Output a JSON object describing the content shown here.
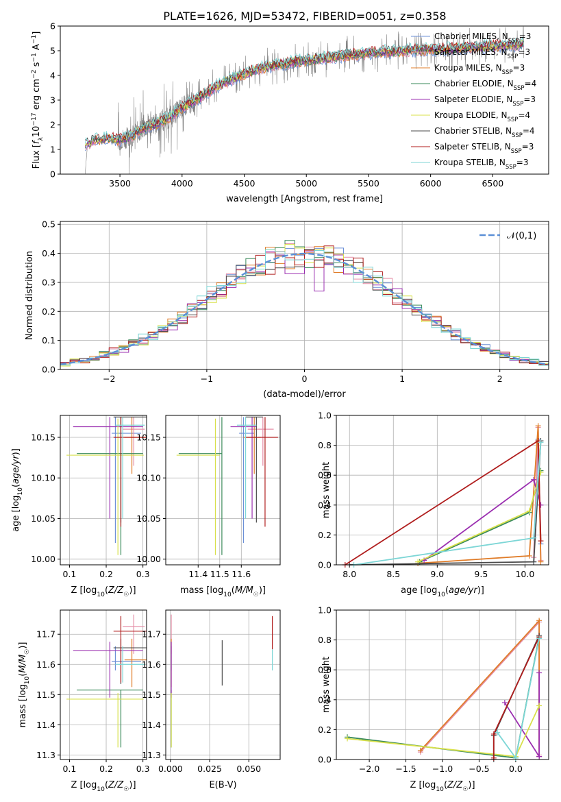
{
  "figure": {
    "title": "PLATE=1626, MJD=53472, FIBERID=0051, z=0.358"
  },
  "colors": {
    "Chabrier MILES": "#6b8fd6",
    "Salpeter MILES": "#e58fa8",
    "Kroupa MILES": "#e07d2a",
    "Chabrier ELODIE": "#3a8a5a",
    "Salpeter ELODIE": "#9b2fb0",
    "Kroupa ELODIE": "#d8e04a",
    "Chabrier STELIB": "#4a4a4a",
    "Salpeter STELIB": "#b01e1e",
    "Kroupa STELIB": "#7dd6d6",
    "data": "#808080",
    "normal": "#5b8fd6"
  },
  "chart_data": [
    {
      "id": "spectrum",
      "type": "line",
      "xlabel": "wavelength [Angstrom, rest frame]",
      "ylabel": "Flux [f_λ 10^-17 erg cm^-2 s^-1 A^-1]",
      "xlim": [
        3020,
        6950
      ],
      "ylim": [
        0,
        6
      ],
      "xticks": [
        3500,
        4000,
        4500,
        5000,
        5500,
        6000,
        6500
      ],
      "yticks": [
        0,
        1,
        2,
        3,
        4,
        5,
        6
      ],
      "legend_position": "right",
      "legend": [
        {
          "label": "Chabrier MILES, N",
          "sub": "SSP",
          "tail": "=3",
          "model": "Chabrier MILES"
        },
        {
          "label": "Salpeter MILES, N",
          "sub": "SSP",
          "tail": "=3",
          "model": "Salpeter MILES"
        },
        {
          "label": "Kroupa MILES, N",
          "sub": "SSP",
          "tail": "=3",
          "model": "Kroupa MILES"
        },
        {
          "label": "Chabrier ELODIE, N",
          "sub": "SSP",
          "tail": "=4",
          "model": "Chabrier ELODIE"
        },
        {
          "label": "Salpeter ELODIE, N",
          "sub": "SSP",
          "tail": "=3",
          "model": "Salpeter ELODIE"
        },
        {
          "label": "Kroupa ELODIE, N",
          "sub": "SSP",
          "tail": "=4",
          "model": "Kroupa ELODIE"
        },
        {
          "label": "Chabrier STELIB, N",
          "sub": "SSP",
          "tail": "=4",
          "model": "Chabrier STELIB"
        },
        {
          "label": "Salpeter STELIB, N",
          "sub": "SSP",
          "tail": "=3",
          "model": "Salpeter STELIB"
        },
        {
          "label": "Kroupa STELIB, N",
          "sub": "SSP",
          "tail": "=3",
          "model": "Kroupa STELIB"
        }
      ],
      "continuum": {
        "x": [
          3220,
          3300,
          3400,
          3500,
          3600,
          3700,
          3800,
          3900,
          4000,
          4100,
          4200,
          4300,
          4400,
          4500,
          4600,
          4700,
          4800,
          4900,
          5000,
          5200,
          5400,
          5600,
          5800,
          6000,
          6200,
          6400,
          6600,
          6750
        ],
        "y": [
          1.2,
          1.4,
          1.45,
          1.4,
          1.55,
          1.9,
          2.05,
          2.3,
          2.7,
          2.95,
          3.3,
          3.6,
          3.85,
          4.05,
          4.25,
          4.35,
          4.45,
          4.55,
          4.6,
          4.75,
          4.85,
          4.95,
          5.0,
          5.05,
          5.1,
          5.15,
          5.2,
          5.25
        ]
      },
      "models": {
        "x_min": 3220,
        "x_max": 6750
      }
    },
    {
      "id": "residuals",
      "type": "histogram",
      "xlabel": "(data-model)/error",
      "ylabel": "Normed distribution",
      "xlim": [
        -2.5,
        2.5
      ],
      "ylim": [
        0,
        0.51
      ],
      "xticks": [
        -2,
        -1,
        0,
        1,
        2
      ],
      "yticks": [
        0.0,
        0.1,
        0.2,
        0.3,
        0.4,
        0.5
      ],
      "grid": true,
      "legend_position": "top-right",
      "legend": "𝒩(0,1)",
      "bin_width": 0.1
    },
    {
      "id": "age-vs-Z",
      "type": "errorbar",
      "xlabel": "Z [log10(Z/Z☉)]",
      "ylabel": "age [log10(age/yr)]",
      "xlim": [
        0.075,
        0.31
      ],
      "ylim": [
        9.993,
        10.177
      ],
      "xticks": [
        0.1,
        0.2,
        0.3
      ],
      "yticks": [
        10.0,
        10.05,
        10.1,
        10.15
      ],
      "grid": true,
      "points": [
        {
          "model": "Chabrier MILES",
          "x": 0.225,
          "xerr": [
            0.01,
            0.07
          ],
          "y": 10.155,
          "yerr": [
            0.135,
            0.02
          ]
        },
        {
          "model": "Salpeter MILES",
          "x": 0.275,
          "xerr": [
            0.03,
            0.03
          ],
          "y": 10.16,
          "yerr": [
            0.045,
            0.015
          ]
        },
        {
          "model": "Kroupa MILES",
          "x": 0.27,
          "xerr": [
            0.02,
            0.04
          ],
          "y": 10.15,
          "yerr": [
            0.045,
            0.025
          ]
        },
        {
          "model": "Chabrier ELODIE",
          "x": 0.24,
          "xerr": [
            0.12,
            0.06
          ],
          "y": 10.13,
          "yerr": [
            0.125,
            0.045
          ]
        },
        {
          "model": "Salpeter ELODIE",
          "x": 0.21,
          "xerr": [
            0.1,
            0.09
          ],
          "y": 10.163,
          "yerr": [
            0.113,
            0.012
          ]
        },
        {
          "model": "Kroupa ELODIE",
          "x": 0.232,
          "xerr": [
            0.14,
            0.07
          ],
          "y": 10.128,
          "yerr": [
            0.123,
            0.045
          ]
        },
        {
          "model": "Chabrier STELIB",
          "x": 0.24,
          "xerr": [
            0.02,
            0.07
          ],
          "y": 10.175,
          "yerr": [
            0.13,
            0.0
          ]
        },
        {
          "model": "Salpeter STELIB",
          "x": 0.24,
          "xerr": [
            0.02,
            0.07
          ],
          "y": 10.15,
          "yerr": [
            0.11,
            0.025
          ]
        },
        {
          "model": "Kroupa STELIB",
          "x": 0.245,
          "xerr": [
            0.02,
            0.06
          ],
          "y": 10.165,
          "yerr": [
            0.115,
            0.01
          ]
        }
      ]
    },
    {
      "id": "age-vs-mass",
      "type": "errorbar",
      "xlabel": "mass [log10(M/M☉)]",
      "ylabel": "",
      "xlim": [
        11.25,
        11.78
      ],
      "ylim": [
        9.993,
        10.177
      ],
      "xticks": [
        11.4,
        11.5,
        11.6
      ],
      "yticks": [
        10.0,
        10.05,
        10.1,
        10.15
      ],
      "grid": true,
      "points": [
        {
          "model": "Chabrier MILES",
          "x": 11.61,
          "xerr": [
            0.02,
            0.05
          ],
          "y": 10.155,
          "yerr": [
            0.135,
            0.02
          ]
        },
        {
          "model": "Salpeter MILES",
          "x": 11.7,
          "xerr": [
            0.07,
            0.05
          ],
          "y": 10.16,
          "yerr": [
            0.045,
            0.015
          ]
        },
        {
          "model": "Kroupa MILES",
          "x": 11.66,
          "xerr": [
            0.05,
            0.03
          ],
          "y": 10.15,
          "yerr": [
            0.045,
            0.025
          ]
        },
        {
          "model": "Chabrier ELODIE",
          "x": 11.51,
          "xerr": [
            0.2,
            0.0
          ],
          "y": 10.13,
          "yerr": [
            0.125,
            0.045
          ]
        },
        {
          "model": "Salpeter ELODIE",
          "x": 11.65,
          "xerr": [
            0.1,
            0.02
          ],
          "y": 10.163,
          "yerr": [
            0.113,
            0.012
          ]
        },
        {
          "model": "Kroupa ELODIE",
          "x": 11.48,
          "xerr": [
            0.18,
            0.02
          ],
          "y": 10.128,
          "yerr": [
            0.123,
            0.045
          ]
        },
        {
          "model": "Chabrier STELIB",
          "x": 11.67,
          "xerr": [
            0.05,
            0.03
          ],
          "y": 10.175,
          "yerr": [
            0.13,
            0.0
          ]
        },
        {
          "model": "Salpeter STELIB",
          "x": 11.71,
          "xerr": [
            0.09,
            0.06
          ],
          "y": 10.15,
          "yerr": [
            0.11,
            0.025
          ]
        },
        {
          "model": "Kroupa STELIB",
          "x": 11.62,
          "xerr": [
            0.04,
            0.05
          ],
          "y": 10.165,
          "yerr": [
            0.115,
            0.01
          ]
        }
      ]
    },
    {
      "id": "weight-vs-age",
      "type": "line",
      "xlabel": "age [log10(age/yr)]",
      "ylabel": "mass weight",
      "xlim": [
        7.85,
        10.27
      ],
      "ylim": [
        0,
        1.0
      ],
      "xticks": [
        8.0,
        8.5,
        9.0,
        9.5,
        10.0
      ],
      "yticks": [
        0.0,
        0.2,
        0.4,
        0.6,
        0.8,
        1.0
      ],
      "grid": true,
      "series": [
        {
          "model": "Chabrier MILES",
          "x": [
            10.1,
            10.15,
            10.18
          ],
          "y": [
            0.02,
            0.84,
            0.14
          ]
        },
        {
          "model": "Salpeter MILES",
          "x": [
            10.1,
            10.15,
            10.18
          ],
          "y": [
            0.05,
            0.92,
            0.03
          ]
        },
        {
          "model": "Kroupa MILES",
          "x": [
            8.78,
            10.05,
            10.15,
            10.18
          ],
          "y": [
            0.01,
            0.06,
            0.93,
            0.02
          ]
        },
        {
          "model": "Chabrier ELODIE",
          "x": [
            8.8,
            10.05,
            10.18
          ],
          "y": [
            0.02,
            0.35,
            0.63
          ]
        },
        {
          "model": "Salpeter ELODIE",
          "x": [
            8.85,
            10.1,
            10.18
          ],
          "y": [
            0.03,
            0.57,
            0.4
          ]
        },
        {
          "model": "Kroupa ELODIE",
          "x": [
            8.78,
            10.05,
            10.18
          ],
          "y": [
            0.02,
            0.36,
            0.62
          ]
        },
        {
          "model": "Chabrier STELIB",
          "x": [
            8.0,
            10.1,
            10.18
          ],
          "y": [
            0.0,
            0.02,
            0.83
          ]
        },
        {
          "model": "Salpeter STELIB",
          "x": [
            7.95,
            10.15,
            10.18
          ],
          "y": [
            0.0,
            0.83,
            0.16
          ]
        },
        {
          "model": "Kroupa STELIB",
          "x": [
            8.05,
            10.1,
            10.18
          ],
          "y": [
            0.0,
            0.18,
            0.82
          ]
        }
      ]
    },
    {
      "id": "mass-vs-Z",
      "type": "errorbar",
      "xlabel": "Z [log10(Z/Z☉)]",
      "ylabel": "mass [log10(M/M☉)]",
      "xlim": [
        0.075,
        0.31
      ],
      "ylim": [
        11.285,
        11.78
      ],
      "xticks": [
        0.1,
        0.2,
        0.3
      ],
      "yticks": [
        11.3,
        11.4,
        11.5,
        11.6,
        11.7
      ],
      "grid": true,
      "points": [
        {
          "model": "Chabrier MILES",
          "x": 0.225,
          "xerr": [
            0.01,
            0.07
          ],
          "y": 11.61,
          "yerr": [
            0.03,
            0.05
          ]
        },
        {
          "model": "Salpeter MILES",
          "x": 0.275,
          "xerr": [
            0.03,
            0.03
          ],
          "y": 11.725,
          "yerr": [
            0.09,
            0.04
          ]
        },
        {
          "model": "Kroupa MILES",
          "x": 0.27,
          "xerr": [
            0.02,
            0.04
          ],
          "y": 11.615,
          "yerr": [
            0.09,
            0.07
          ]
        },
        {
          "model": "Chabrier ELODIE",
          "x": 0.24,
          "xerr": [
            0.12,
            0.06
          ],
          "y": 11.515,
          "yerr": [
            0.19,
            0.0
          ]
        },
        {
          "model": "Salpeter ELODIE",
          "x": 0.21,
          "xerr": [
            0.1,
            0.09
          ],
          "y": 11.645,
          "yerr": [
            0.155,
            0.03
          ]
        },
        {
          "model": "Kroupa ELODIE",
          "x": 0.232,
          "xerr": [
            0.14,
            0.07
          ],
          "y": 11.485,
          "yerr": [
            0.16,
            0.02
          ]
        },
        {
          "model": "Chabrier STELIB",
          "x": 0.24,
          "xerr": [
            0.02,
            0.07
          ],
          "y": 11.655,
          "yerr": [
            0.12,
            0.03
          ]
        },
        {
          "model": "Salpeter STELIB",
          "x": 0.24,
          "xerr": [
            0.02,
            0.07
          ],
          "y": 11.71,
          "yerr": [
            0.17,
            0.05
          ]
        },
        {
          "model": "Kroupa STELIB",
          "x": 0.245,
          "xerr": [
            0.02,
            0.06
          ],
          "y": 11.6,
          "yerr": [
            0.06,
            0.06
          ]
        }
      ]
    },
    {
      "id": "mass-vs-ebv",
      "type": "errorbar",
      "xlabel": "E(B-V)",
      "ylabel": "",
      "xlim": [
        -0.003,
        0.07
      ],
      "ylim": [
        11.285,
        11.78
      ],
      "xticks": [
        0.0,
        0.025,
        0.05
      ],
      "yticks": [
        11.3,
        11.4,
        11.5,
        11.6,
        11.7
      ],
      "grid": true,
      "points": [
        {
          "model": "Chabrier MILES",
          "x": 0.0005,
          "y": 11.61,
          "yerr": [
            0.03,
            0.05
          ]
        },
        {
          "model": "Salpeter MILES",
          "x": 0.0005,
          "y": 11.725,
          "yerr": [
            0.09,
            0.04
          ]
        },
        {
          "model": "Kroupa MILES",
          "x": 0.0005,
          "y": 11.615,
          "yerr": [
            0.09,
            0.07
          ]
        },
        {
          "model": "Chabrier ELODIE",
          "x": 0.0005,
          "y": 11.515,
          "yerr": [
            0.19,
            0.0
          ]
        },
        {
          "model": "Salpeter ELODIE",
          "x": 0.0005,
          "y": 11.645,
          "yerr": [
            0.155,
            0.03
          ]
        },
        {
          "model": "Kroupa ELODIE",
          "x": 0.0005,
          "y": 11.485,
          "yerr": [
            0.16,
            0.02
          ]
        },
        {
          "model": "Chabrier STELIB",
          "x": 0.033,
          "y": 11.61,
          "yerr": [
            0.08,
            0.07
          ]
        },
        {
          "model": "Salpeter STELIB",
          "x": 0.065,
          "y": 11.7,
          "yerr": [
            0.05,
            0.06
          ]
        },
        {
          "model": "Kroupa STELIB",
          "x": 0.065,
          "y": 11.62,
          "yerr": [
            0.04,
            0.03
          ]
        }
      ]
    },
    {
      "id": "weight-vs-Z",
      "type": "line",
      "xlabel": "Z [log10(Z/Z☉)]",
      "ylabel": "mass weight",
      "xlim": [
        -2.45,
        0.45
      ],
      "ylim": [
        0,
        1.0
      ],
      "xticks": [
        -2.0,
        -1.5,
        -1.0,
        -0.5,
        0.0
      ],
      "yticks": [
        0.0,
        0.2,
        0.4,
        0.6,
        0.8,
        1.0
      ],
      "grid": true,
      "series": [
        {
          "model": "Chabrier MILES",
          "x": [
            -1.3,
            0.32,
            0.32
          ],
          "y": [
            0.06,
            0.92,
            0.02
          ]
        },
        {
          "model": "Salpeter MILES",
          "x": [
            -1.3,
            0.32,
            0.32
          ],
          "y": [
            0.05,
            0.92,
            0.03
          ]
        },
        {
          "model": "Kroupa MILES",
          "x": [
            -1.3,
            0.32,
            0.32
          ],
          "y": [
            0.06,
            0.93,
            0.02
          ]
        },
        {
          "model": "Chabrier ELODIE",
          "x": [
            -2.3,
            0.0,
            0.32
          ],
          "y": [
            0.15,
            0.01,
            0.82
          ]
        },
        {
          "model": "Salpeter ELODIE",
          "x": [
            -0.15,
            0.32,
            0.32
          ],
          "y": [
            0.38,
            0.02,
            0.58
          ]
        },
        {
          "model": "Kroupa ELODIE",
          "x": [
            -2.3,
            0.0,
            0.32
          ],
          "y": [
            0.14,
            0.02,
            0.36
          ]
        },
        {
          "model": "Chabrier STELIB",
          "x": [
            -0.3,
            -0.3,
            0.32
          ],
          "y": [
            0.0,
            0.16,
            0.83
          ]
        },
        {
          "model": "Salpeter STELIB",
          "x": [
            -0.3,
            -0.3,
            0.32
          ],
          "y": [
            0.01,
            0.17,
            0.82
          ]
        },
        {
          "model": "Kroupa STELIB",
          "x": [
            -0.25,
            0.0,
            0.32
          ],
          "y": [
            0.18,
            0.01,
            0.81
          ]
        }
      ]
    }
  ]
}
